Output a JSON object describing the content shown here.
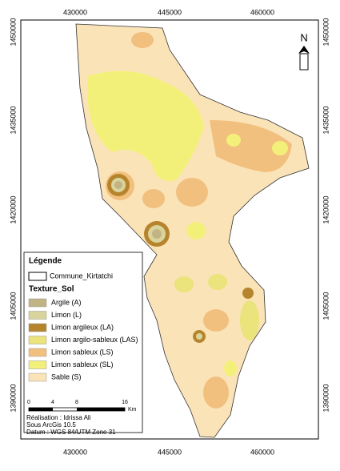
{
  "map": {
    "coords_top": [
      "430000",
      "445000",
      "460000"
    ],
    "coords_bottom": [
      "430000",
      "445000",
      "460000"
    ],
    "coords_left": [
      "1450000",
      "1435000",
      "1420000",
      "1405000",
      "1390000"
    ],
    "coords_right": [
      "1450000",
      "1435000",
      "1420000",
      "1405000",
      "1390000"
    ],
    "north": "N",
    "legend": {
      "title": "Légende",
      "boundary": "Commune_Kirtatchi",
      "layer": "Texture_Sol",
      "items": [
        {
          "label": "Argile (A)",
          "color": "#c2b384"
        },
        {
          "label": "Limon (L)",
          "color": "#d9d49c"
        },
        {
          "label": "Limon argileux (LA)",
          "color": "#b5842c"
        },
        {
          "label": "Limon argilo-sableux (LAS)",
          "color": "#ebe37c"
        },
        {
          "label": "Limon sableux (LS)",
          "color": "#f2c07e"
        },
        {
          "label": "Limon sableux (SL)",
          "color": "#f3f07a"
        },
        {
          "label": "Sable (S)",
          "color": "#fbe3b8"
        }
      ]
    },
    "scale": {
      "labels": [
        "0",
        "4",
        "8",
        "16"
      ],
      "unit": "Km"
    },
    "credits": [
      "Réalisation :  Idrissa Ali",
      "Sous ArcGis 10.5",
      "Datum : WGS 84/UTM Zone 31"
    ]
  }
}
